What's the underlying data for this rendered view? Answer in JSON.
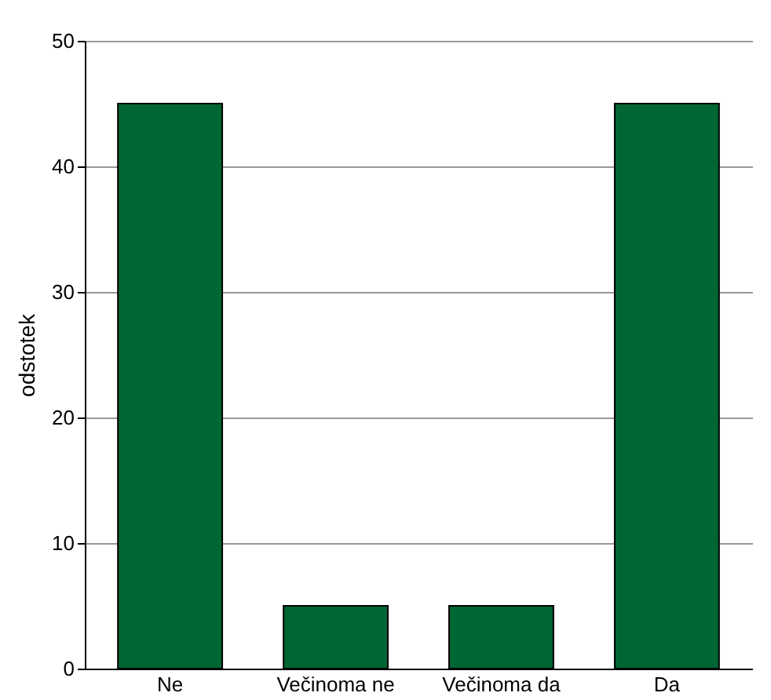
{
  "chart_data": {
    "type": "bar",
    "ylabel": "odstotek",
    "categories": [
      "Ne",
      "Večinoma ne",
      "Večinoma da",
      "Da"
    ],
    "values": [
      45,
      5,
      5,
      45
    ],
    "color": "#006633",
    "ylim": [
      0,
      50
    ],
    "yticks": [
      0,
      10,
      20,
      30,
      40,
      50
    ],
    "grid": "y"
  }
}
